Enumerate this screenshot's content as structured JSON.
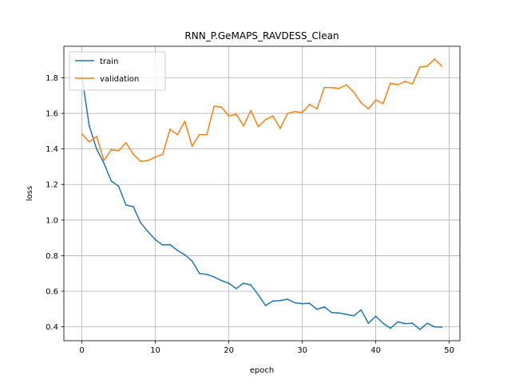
{
  "chart_data": {
    "type": "line",
    "title": "RNN_P.GeMAPS_RAVDESS_Clean",
    "xlabel": "epoch",
    "ylabel": "loss",
    "xlim": [
      -2.45,
      51.45
    ],
    "ylim": [
      0.322,
      1.977
    ],
    "xticks": [
      0,
      10,
      20,
      30,
      40,
      50
    ],
    "yticks": [
      0.4,
      0.6,
      0.8,
      1.0,
      1.2,
      1.4,
      1.6,
      1.8
    ],
    "ytick_labels": [
      "0.4",
      "0.6",
      "0.8",
      "1.0",
      "1.2",
      "1.4",
      "1.6",
      "1.8"
    ],
    "grid": true,
    "legend_position": "upper-left",
    "x": [
      0,
      1,
      2,
      3,
      4,
      5,
      6,
      7,
      8,
      9,
      10,
      11,
      12,
      13,
      14,
      15,
      16,
      17,
      18,
      19,
      20,
      21,
      22,
      23,
      24,
      25,
      26,
      27,
      28,
      29,
      30,
      31,
      32,
      33,
      34,
      35,
      36,
      37,
      38,
      39,
      40,
      41,
      42,
      43,
      44,
      45,
      46,
      47,
      48,
      49
    ],
    "series": [
      {
        "name": "train",
        "color": "#1f77b4",
        "values": [
          1.81,
          1.53,
          1.4,
          1.32,
          1.22,
          1.19,
          1.085,
          1.075,
          0.985,
          0.935,
          0.89,
          0.86,
          0.862,
          0.83,
          0.805,
          0.77,
          0.7,
          0.695,
          0.68,
          0.66,
          0.645,
          0.615,
          0.645,
          0.635,
          0.58,
          0.52,
          0.545,
          0.548,
          0.555,
          0.535,
          0.53,
          0.532,
          0.498,
          0.512,
          0.48,
          0.478,
          0.47,
          0.462,
          0.495,
          0.42,
          0.46,
          0.42,
          0.392,
          0.428,
          0.418,
          0.42,
          0.385,
          0.42,
          0.4,
          0.398
        ]
      },
      {
        "name": "validation",
        "color": "#ff7f0e",
        "values": [
          1.485,
          1.44,
          1.47,
          1.335,
          1.395,
          1.39,
          1.435,
          1.37,
          1.33,
          1.335,
          1.355,
          1.37,
          1.51,
          1.48,
          1.555,
          1.415,
          1.48,
          1.48,
          1.64,
          1.635,
          1.585,
          1.595,
          1.53,
          1.615,
          1.525,
          1.565,
          1.585,
          1.515,
          1.6,
          1.61,
          1.605,
          1.65,
          1.625,
          1.745,
          1.745,
          1.74,
          1.76,
          1.72,
          1.66,
          1.625,
          1.675,
          1.655,
          1.77,
          1.76,
          1.78,
          1.765,
          1.86,
          1.865,
          1.905,
          1.865
        ]
      }
    ]
  }
}
